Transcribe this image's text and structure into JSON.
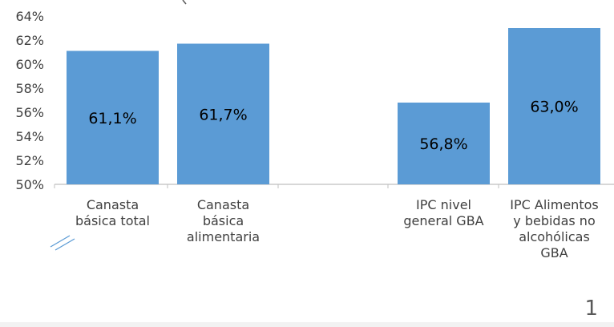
{
  "chart_data": {
    "type": "bar",
    "categories": [
      [
        "Canasta",
        "básica total"
      ],
      [
        "Canasta",
        "básica",
        "alimentaria"
      ],
      [
        "IPC nivel",
        "general GBA"
      ],
      [
        "IPC Alimentos",
        "y bebidas no",
        "alcohólicas",
        "GBA"
      ]
    ],
    "values": [
      61.1,
      61.7,
      56.8,
      63.0
    ],
    "data_labels": [
      "61,1%",
      "61,7%",
      "56,8%",
      "63,0%"
    ],
    "ylim": [
      50,
      64
    ],
    "y_ticks": [
      "50%",
      "52%",
      "54%",
      "56%",
      "58%",
      "60%",
      "62%",
      "64%"
    ],
    "y_tick_values": [
      50,
      52,
      54,
      56,
      58,
      60,
      62,
      64
    ],
    "grid": false,
    "axis_break_between": [
      1,
      2
    ],
    "bar_color": "#5b9bd5",
    "title": "",
    "xlabel": "",
    "ylabel": ""
  },
  "slide": {
    "page_number": "1"
  }
}
